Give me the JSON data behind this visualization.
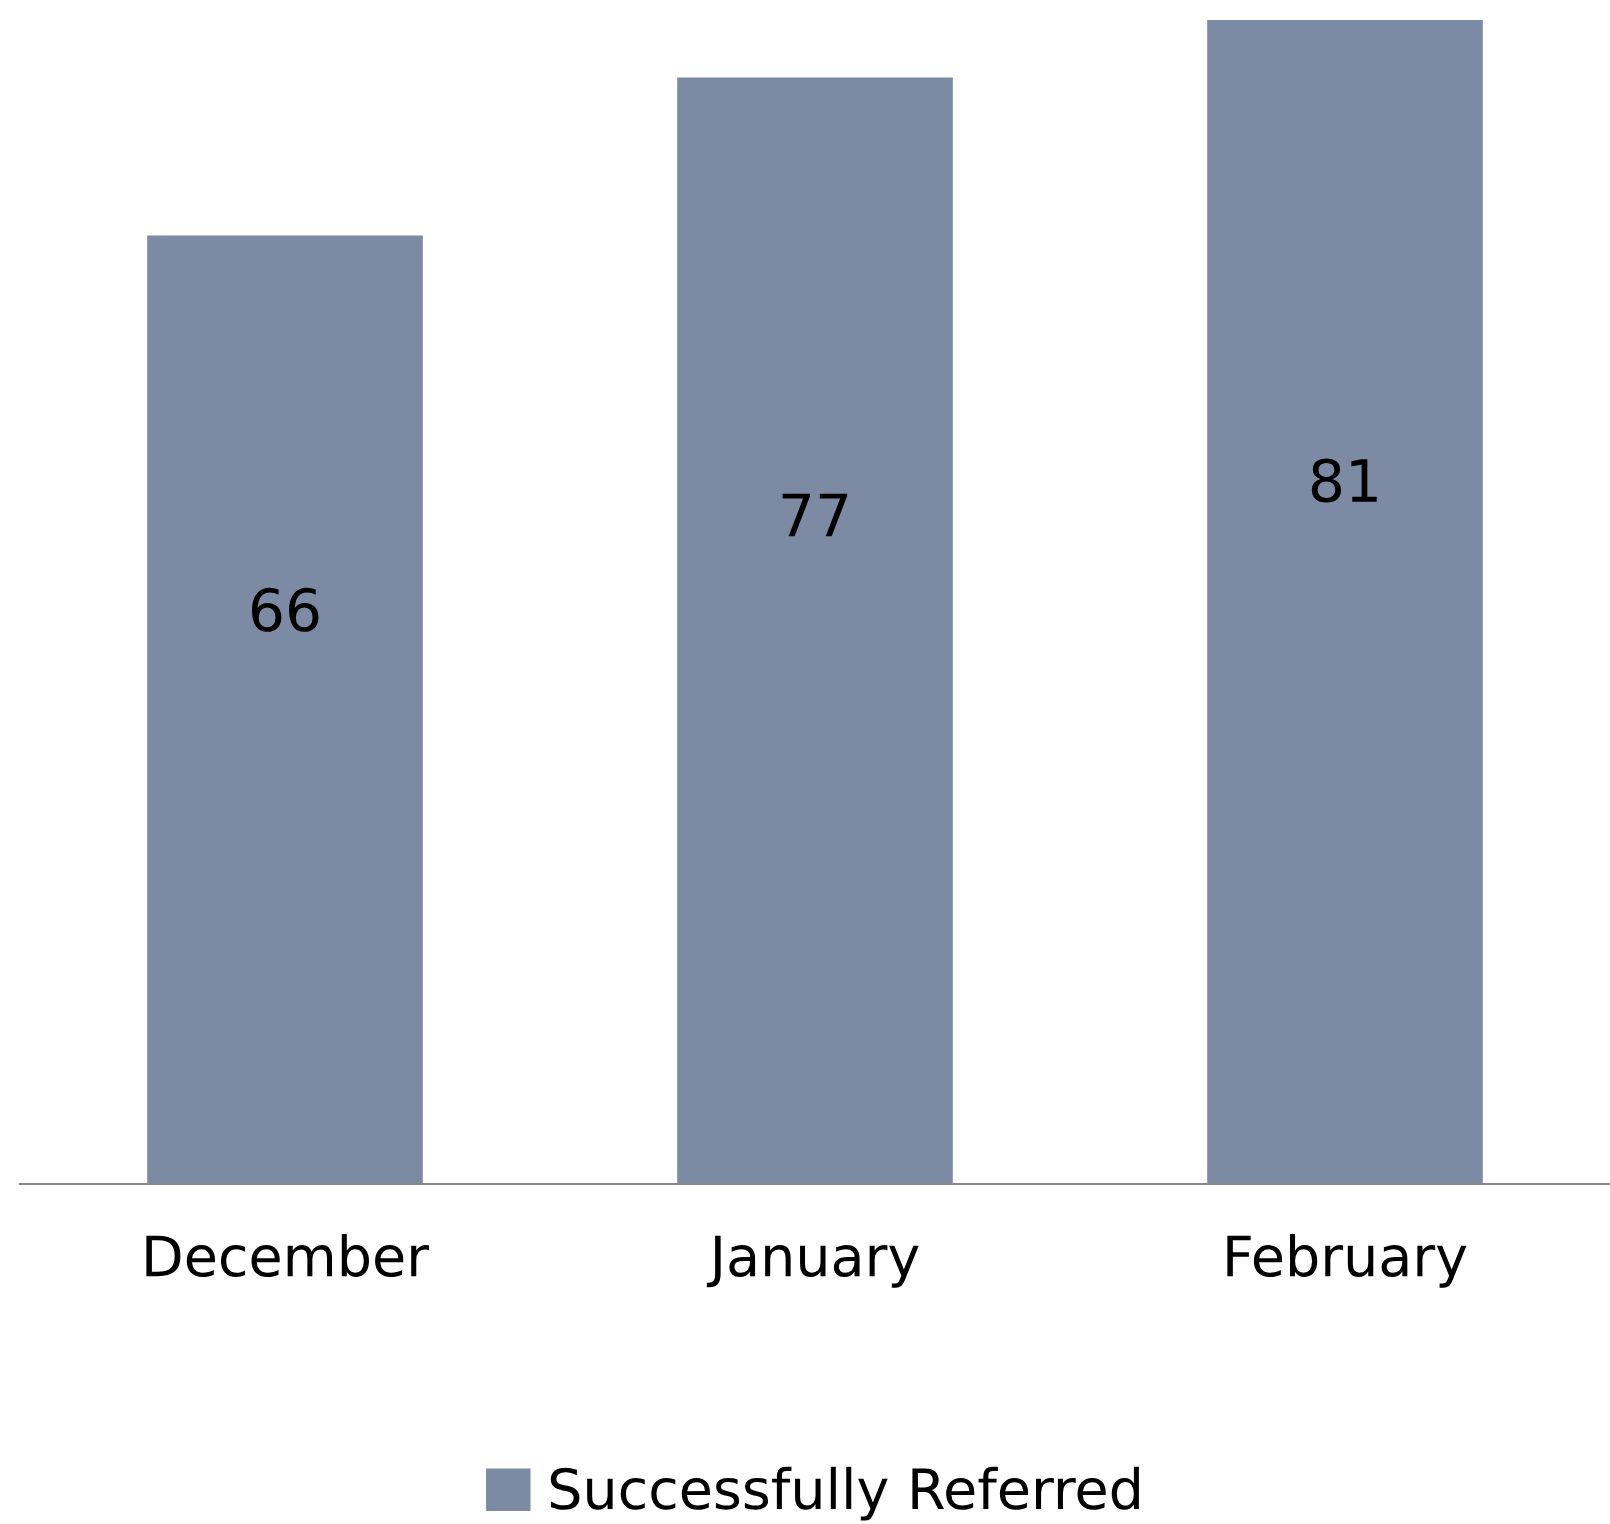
{
  "chart_data": {
    "type": "bar",
    "categories": [
      "December",
      "January",
      "February"
    ],
    "series": [
      {
        "name": "Successfully Referred",
        "color": "#7d8aa3",
        "values": [
          66,
          77,
          81
        ]
      }
    ],
    "data_labels": true,
    "legend": "bottom",
    "grid": false
  }
}
